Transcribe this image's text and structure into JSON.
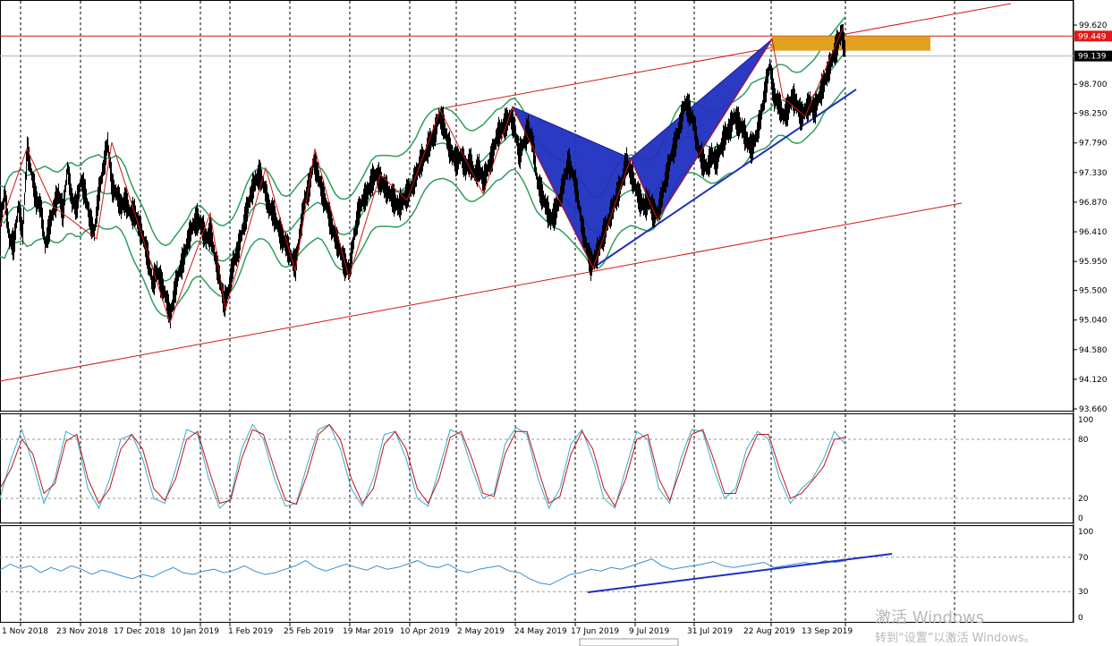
{
  "chart_data": [
    {
      "type": "candlestick",
      "symbol_scale": "price",
      "y_ticks": [
        99.62,
        99.17,
        98.7,
        98.25,
        97.79,
        97.33,
        96.87,
        96.41,
        95.95,
        95.5,
        95.04,
        94.58,
        94.12,
        93.66
      ],
      "y_tick_labels": [
        "99.620",
        "98.700",
        "98.250",
        "97.790",
        "97.330",
        "96.870",
        "96.410",
        "95.950",
        "95.500",
        "95.040",
        "94.580",
        "94.120",
        "93.660"
      ],
      "ylim": [
        93.6,
        100.0
      ],
      "current_price": 99.139,
      "current_price_label": "99.139",
      "line_price": 99.449,
      "line_price_label": "99.449",
      "x_labels": [
        "1 Nov 2018",
        "23 Nov 2018",
        "17 Dec 2018",
        "10 Jan 2019",
        "1 Feb 2019",
        "25 Feb 2019",
        "19 Mar 2019",
        "10 Apr 2019",
        "2 May 2019",
        "24 May 2019",
        "17 Jun 2019",
        "9 Jul 2019",
        "31 Jul 2019",
        "22 Aug 2019",
        "13 Sep 2019"
      ],
      "price_path": [
        [
          0,
          96.6
        ],
        [
          5,
          97.0
        ],
        [
          10,
          96.3
        ],
        [
          15,
          96.2
        ],
        [
          20,
          96.8
        ],
        [
          25,
          96.4
        ],
        [
          30,
          97.7
        ],
        [
          35,
          97.3
        ],
        [
          40,
          96.9
        ],
        [
          45,
          96.8
        ],
        [
          50,
          96.2
        ],
        [
          55,
          96.5
        ],
        [
          60,
          96.8
        ],
        [
          65,
          97.0
        ],
        [
          70,
          96.7
        ],
        [
          75,
          97.4
        ],
        [
          80,
          96.9
        ],
        [
          85,
          96.8
        ],
        [
          90,
          97.2
        ],
        [
          95,
          97.0
        ],
        [
          100,
          96.6
        ],
        [
          105,
          96.4
        ],
        [
          110,
          97.0
        ],
        [
          115,
          97.4
        ],
        [
          120,
          97.8
        ],
        [
          125,
          97.1
        ],
        [
          130,
          97.0
        ],
        [
          135,
          96.8
        ],
        [
          140,
          96.9
        ],
        [
          145,
          96.7
        ],
        [
          150,
          96.7
        ],
        [
          155,
          96.5
        ],
        [
          160,
          96.3
        ],
        [
          165,
          96.0
        ],
        [
          170,
          95.6
        ],
        [
          175,
          95.8
        ],
        [
          180,
          95.6
        ],
        [
          185,
          95.4
        ],
        [
          190,
          95.1
        ],
        [
          195,
          95.5
        ],
        [
          200,
          95.8
        ],
        [
          205,
          96.0
        ],
        [
          210,
          96.3
        ],
        [
          215,
          96.5
        ],
        [
          220,
          96.6
        ],
        [
          225,
          96.5
        ],
        [
          230,
          96.3
        ],
        [
          235,
          96.4
        ],
        [
          240,
          96.0
        ],
        [
          245,
          95.7
        ],
        [
          250,
          95.3
        ],
        [
          255,
          95.5
        ],
        [
          260,
          95.9
        ],
        [
          265,
          96.1
        ],
        [
          270,
          96.4
        ],
        [
          275,
          96.7
        ],
        [
          280,
          97.0
        ],
        [
          285,
          97.2
        ],
        [
          290,
          97.3
        ],
        [
          295,
          97.1
        ],
        [
          300,
          96.8
        ],
        [
          305,
          96.7
        ],
        [
          310,
          96.5
        ],
        [
          315,
          96.3
        ],
        [
          320,
          96.2
        ],
        [
          325,
          96.0
        ],
        [
          330,
          95.9
        ],
        [
          335,
          96.4
        ],
        [
          340,
          96.9
        ],
        [
          345,
          97.1
        ],
        [
          350,
          97.5
        ],
        [
          355,
          97.3
        ],
        [
          360,
          97.0
        ],
        [
          365,
          96.8
        ],
        [
          370,
          96.5
        ],
        [
          375,
          96.3
        ],
        [
          380,
          96.1
        ],
        [
          385,
          95.9
        ],
        [
          390,
          95.8
        ],
        [
          395,
          96.3
        ],
        [
          400,
          96.7
        ],
        [
          405,
          96.9
        ],
        [
          410,
          97.0
        ],
        [
          415,
          97.2
        ],
        [
          420,
          97.3
        ],
        [
          425,
          97.2
        ],
        [
          430,
          97.1
        ],
        [
          435,
          97.0
        ],
        [
          440,
          96.9
        ],
        [
          445,
          96.8
        ],
        [
          450,
          96.9
        ],
        [
          455,
          97.0
        ],
        [
          460,
          97.1
        ],
        [
          465,
          97.3
        ],
        [
          470,
          97.5
        ],
        [
          475,
          97.6
        ],
        [
          480,
          97.8
        ],
        [
          485,
          97.9
        ],
        [
          490,
          98.2
        ],
        [
          495,
          98.1
        ],
        [
          500,
          97.8
        ],
        [
          505,
          97.6
        ],
        [
          510,
          97.5
        ],
        [
          515,
          97.6
        ],
        [
          520,
          97.4
        ],
        [
          525,
          97.5
        ],
        [
          530,
          97.3
        ],
        [
          535,
          97.4
        ],
        [
          540,
          97.2
        ],
        [
          545,
          97.4
        ],
        [
          550,
          97.6
        ],
        [
          555,
          97.9
        ],
        [
          560,
          98.0
        ],
        [
          565,
          98.1
        ],
        [
          570,
          98.2
        ],
        [
          575,
          98.0
        ],
        [
          580,
          97.6
        ],
        [
          585,
          97.8
        ],
        [
          590,
          98.0
        ],
        [
          595,
          97.8
        ],
        [
          600,
          97.2
        ],
        [
          605,
          97.0
        ],
        [
          610,
          96.8
        ],
        [
          615,
          96.6
        ],
        [
          620,
          96.7
        ],
        [
          625,
          96.9
        ],
        [
          630,
          97.2
        ],
        [
          635,
          97.5
        ],
        [
          640,
          97.3
        ],
        [
          645,
          97.0
        ],
        [
          650,
          96.5
        ],
        [
          655,
          96.2
        ],
        [
          660,
          95.9
        ],
        [
          665,
          96.0
        ],
        [
          670,
          96.2
        ],
        [
          675,
          96.4
        ],
        [
          680,
          96.6
        ],
        [
          685,
          96.8
        ],
        [
          690,
          97.0
        ],
        [
          695,
          97.2
        ],
        [
          700,
          97.5
        ],
        [
          705,
          97.3
        ],
        [
          710,
          97.1
        ],
        [
          715,
          96.9
        ],
        [
          720,
          96.8
        ],
        [
          725,
          96.9
        ],
        [
          730,
          96.7
        ],
        [
          735,
          96.7
        ],
        [
          740,
          97.0
        ],
        [
          745,
          97.3
        ],
        [
          750,
          97.6
        ],
        [
          755,
          97.8
        ],
        [
          760,
          98.1
        ],
        [
          765,
          98.4
        ],
        [
          770,
          98.3
        ],
        [
          775,
          98.1
        ],
        [
          780,
          97.7
        ],
        [
          785,
          97.5
        ],
        [
          790,
          97.4
        ],
        [
          795,
          97.6
        ],
        [
          800,
          97.5
        ],
        [
          805,
          97.7
        ],
        [
          810,
          97.9
        ],
        [
          815,
          98.0
        ],
        [
          820,
          98.2
        ],
        [
          825,
          98.1
        ],
        [
          830,
          98.0
        ],
        [
          835,
          97.8
        ],
        [
          840,
          97.7
        ],
        [
          845,
          97.9
        ],
        [
          850,
          98.2
        ],
        [
          855,
          98.6
        ],
        [
          860,
          99.0
        ],
        [
          865,
          98.5
        ],
        [
          870,
          98.4
        ],
        [
          875,
          98.2
        ],
        [
          880,
          98.3
        ],
        [
          885,
          98.5
        ],
        [
          890,
          98.4
        ],
        [
          895,
          98.2
        ],
        [
          900,
          98.3
        ],
        [
          905,
          98.4
        ],
        [
          910,
          98.3
        ],
        [
          915,
          98.5
        ],
        [
          920,
          98.7
        ],
        [
          925,
          98.9
        ],
        [
          930,
          99.1
        ],
        [
          935,
          99.3
        ],
        [
          940,
          99.5
        ],
        [
          945,
          99.2
        ]
      ],
      "harmonic_pattern": [
        [
          573,
          98.35
        ],
        [
          663,
          95.85
        ],
        [
          705,
          97.55
        ],
        [
          735,
          96.6
        ],
        [
          863,
          99.4
        ]
      ]
    },
    {
      "type": "line",
      "panel": "stochastic",
      "y_tick_labels": [
        "100",
        "80",
        "20",
        "0"
      ],
      "y_ticks": [
        100,
        80,
        20,
        0
      ],
      "ylim": [
        0,
        100
      ],
      "series": [
        {
          "color": "#3fa9c9",
          "values": [
            20,
            60,
            90,
            55,
            15,
            40,
            88,
            82,
            30,
            10,
            40,
            80,
            85,
            60,
            20,
            15,
            50,
            90,
            85,
            40,
            10,
            20,
            70,
            95,
            80,
            40,
            12,
            15,
            55,
            90,
            95,
            70,
            30,
            12,
            40,
            85,
            88,
            60,
            20,
            12,
            50,
            90,
            85,
            50,
            20,
            25,
            75,
            92,
            85,
            40,
            10,
            30,
            75,
            90,
            60,
            20,
            10,
            50,
            88,
            80,
            30,
            15,
            60,
            90,
            88,
            50,
            20,
            30,
            70,
            88,
            80,
            40,
            15,
            30,
            40,
            60,
            88,
            75
          ]
        },
        {
          "color": "#c0141c",
          "values": [
            30,
            50,
            80,
            65,
            25,
            35,
            78,
            85,
            40,
            15,
            30,
            70,
            85,
            70,
            30,
            18,
            40,
            80,
            88,
            50,
            15,
            18,
            60,
            90,
            85,
            50,
            18,
            14,
            45,
            85,
            95,
            80,
            40,
            15,
            30,
            75,
            88,
            70,
            30,
            15,
            40,
            82,
            88,
            60,
            25,
            22,
            65,
            88,
            88,
            50,
            15,
            22,
            65,
            88,
            70,
            30,
            12,
            40,
            80,
            85,
            40,
            18,
            50,
            85,
            90,
            60,
            25,
            25,
            60,
            85,
            85,
            50,
            20,
            25,
            38,
            52,
            80,
            82
          ]
        }
      ]
    },
    {
      "type": "line",
      "panel": "oscillator",
      "y_tick_labels": [
        "100",
        "70",
        "30",
        "0"
      ],
      "y_ticks": [
        100,
        70,
        30,
        0
      ],
      "ylim": [
        0,
        100
      ],
      "series": [
        {
          "color": "#3a8fd0",
          "values": [
            55,
            62,
            57,
            60,
            52,
            58,
            54,
            60,
            56,
            50,
            55,
            52,
            48,
            45,
            50,
            47,
            53,
            58,
            52,
            50,
            54,
            56,
            52,
            55,
            60,
            54,
            50,
            52,
            56,
            60,
            66,
            58,
            54,
            58,
            62,
            58,
            55,
            60,
            56,
            58,
            62,
            66,
            60,
            58,
            62,
            55,
            52,
            56,
            58,
            60,
            54,
            52,
            45,
            40,
            38,
            44,
            50,
            52,
            56,
            54,
            58,
            56,
            60,
            64,
            68,
            60,
            56,
            58,
            60,
            62,
            65,
            60,
            58,
            60,
            62,
            64,
            58,
            60,
            62,
            64,
            62,
            66,
            64,
            66
          ]
        }
      ]
    }
  ]
}
